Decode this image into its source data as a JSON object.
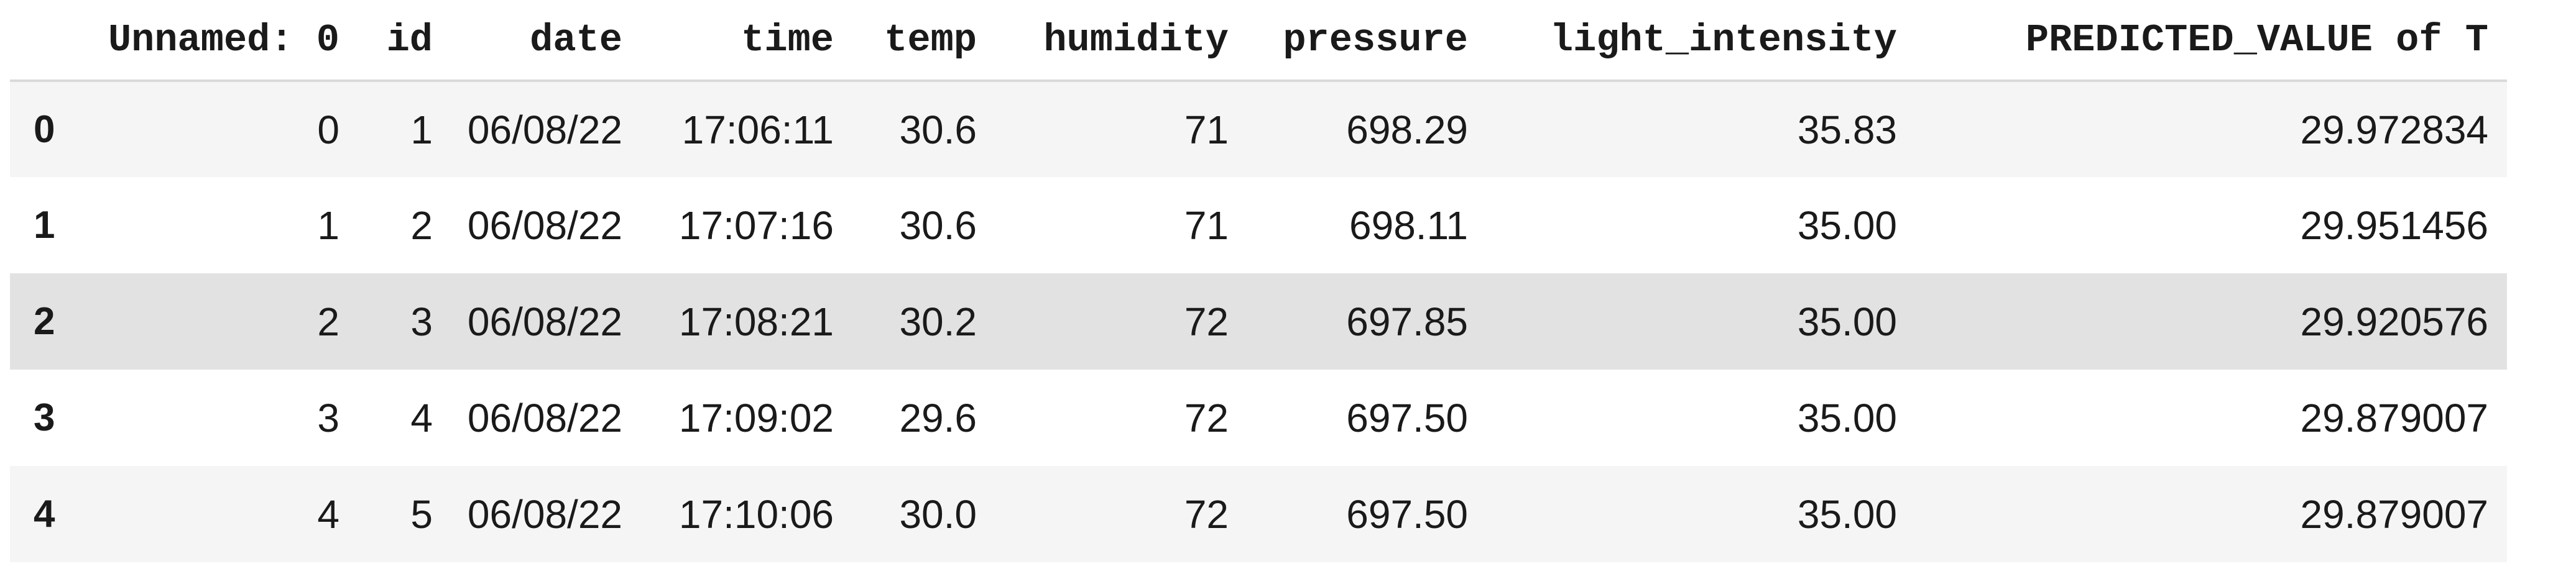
{
  "table": {
    "columns": [
      "Unnamed: 0",
      "id",
      "date",
      "time",
      "temp",
      "humidity",
      "pressure",
      "light_intensity",
      "PREDICTED_VALUE of T"
    ],
    "rows": [
      {
        "index": "0",
        "cells": [
          "0",
          "1",
          "06/08/22",
          "17:06:11",
          "30.6",
          "71",
          "698.29",
          "35.83",
          "29.972834"
        ]
      },
      {
        "index": "1",
        "cells": [
          "1",
          "2",
          "06/08/22",
          "17:07:16",
          "30.6",
          "71",
          "698.11",
          "35.00",
          "29.951456"
        ]
      },
      {
        "index": "2",
        "cells": [
          "2",
          "3",
          "06/08/22",
          "17:08:21",
          "30.2",
          "72",
          "697.85",
          "35.00",
          "29.920576"
        ]
      },
      {
        "index": "3",
        "cells": [
          "3",
          "4",
          "06/08/22",
          "17:09:02",
          "29.6",
          "72",
          "697.50",
          "35.00",
          "29.879007"
        ]
      },
      {
        "index": "4",
        "cells": [
          "4",
          "5",
          "06/08/22",
          "17:10:06",
          "30.0",
          "72",
          "697.50",
          "35.00",
          "29.879007"
        ]
      }
    ],
    "highlighted_row": 2
  }
}
